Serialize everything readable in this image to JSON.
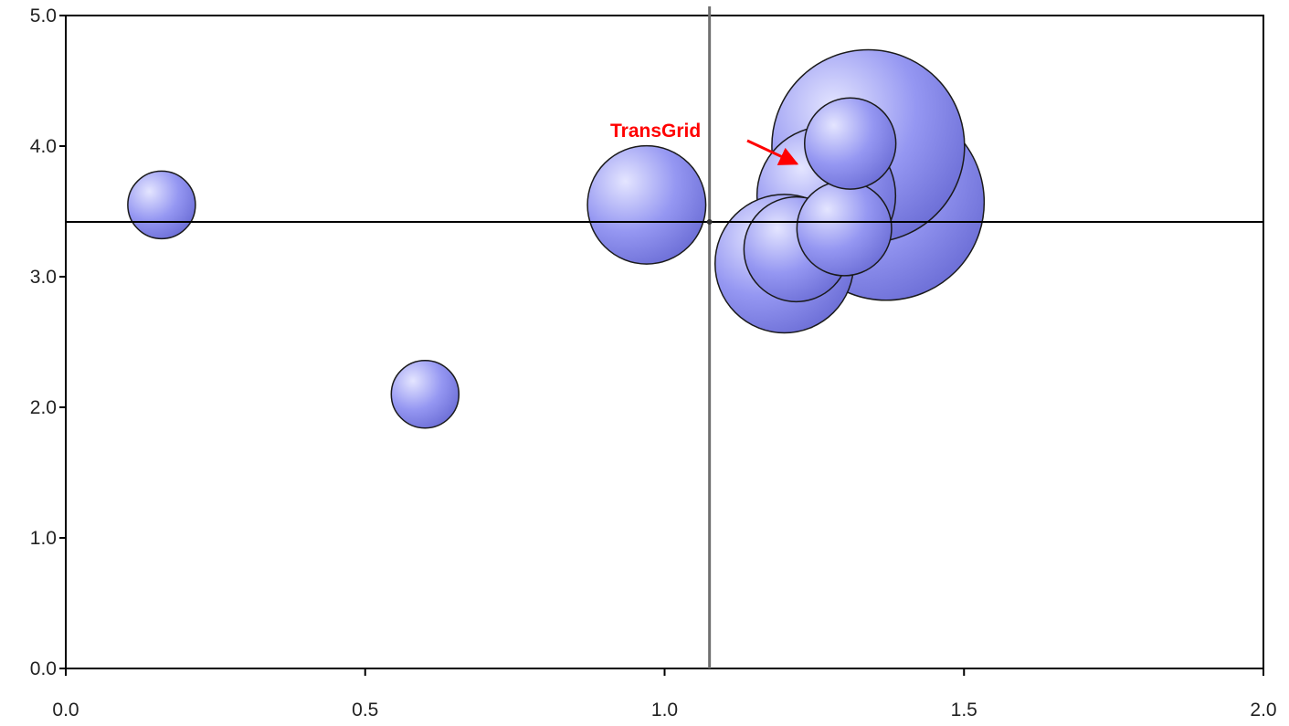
{
  "chart_data": {
    "type": "scatter",
    "variant": "bubble",
    "xlim": [
      0.0,
      2.0
    ],
    "ylim": [
      0.0,
      5.0
    ],
    "x_ticks": [
      0.0,
      0.5,
      1.0,
      1.5,
      2.0
    ],
    "y_ticks": [
      0.0,
      1.0,
      2.0,
      3.0,
      4.0,
      5.0
    ],
    "x_tick_labels": [
      "0.0",
      "0.5",
      "1.0",
      "1.5",
      "2.0"
    ],
    "y_tick_labels": [
      "0.0",
      "1.0",
      "2.0",
      "3.0",
      "4.0",
      "5.0"
    ],
    "grid": false,
    "reference_lines": {
      "x": 1.075,
      "y": 3.42
    },
    "bubble_color": "#8c8ef0",
    "points": [
      {
        "x": 0.16,
        "y": 3.55,
        "size": 1.0
      },
      {
        "x": 0.6,
        "y": 2.1,
        "size": 1.0
      },
      {
        "x": 0.97,
        "y": 3.55,
        "size": 1.75
      },
      {
        "x": 1.34,
        "y": 4.0,
        "size": 2.85
      },
      {
        "x": 1.37,
        "y": 3.57,
        "size": 2.9
      },
      {
        "x": 1.27,
        "y": 3.62,
        "size": 2.05
      },
      {
        "x": 1.2,
        "y": 3.1,
        "size": 2.05
      },
      {
        "x": 1.22,
        "y": 3.21,
        "size": 1.55
      },
      {
        "x": 1.3,
        "y": 3.37,
        "size": 1.4
      },
      {
        "x": 1.31,
        "y": 4.02,
        "size": 1.35
      }
    ],
    "annotations": [
      {
        "text": "TransGrid",
        "point_x": 1.23,
        "point_y": 3.83,
        "color": "#ff0000"
      }
    ]
  }
}
